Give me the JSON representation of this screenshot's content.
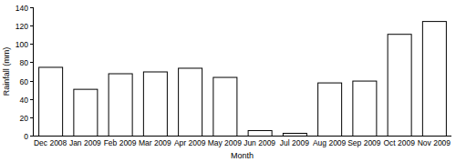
{
  "chart_data": {
    "type": "bar",
    "x_label": "Month",
    "y_label": "Rainfall (mm)",
    "categories": [
      "Dec 2008",
      "Jan 2009",
      "Feb 2009",
      "Mar 2009",
      "Apr 2009",
      "May 2009",
      "Jun 2009",
      "Jul 2009",
      "Aug 2009",
      "Sep 2009",
      "Oct 2009",
      "Nov 2009"
    ],
    "values": [
      75,
      51,
      68,
      70,
      74,
      64,
      6,
      3,
      58,
      60,
      111,
      125
    ],
    "color": "#ffffff",
    "ylim": [
      0,
      140
    ],
    "yticks": [
      0,
      20,
      40,
      60,
      80,
      100,
      120,
      140
    ],
    "grid": false
  }
}
